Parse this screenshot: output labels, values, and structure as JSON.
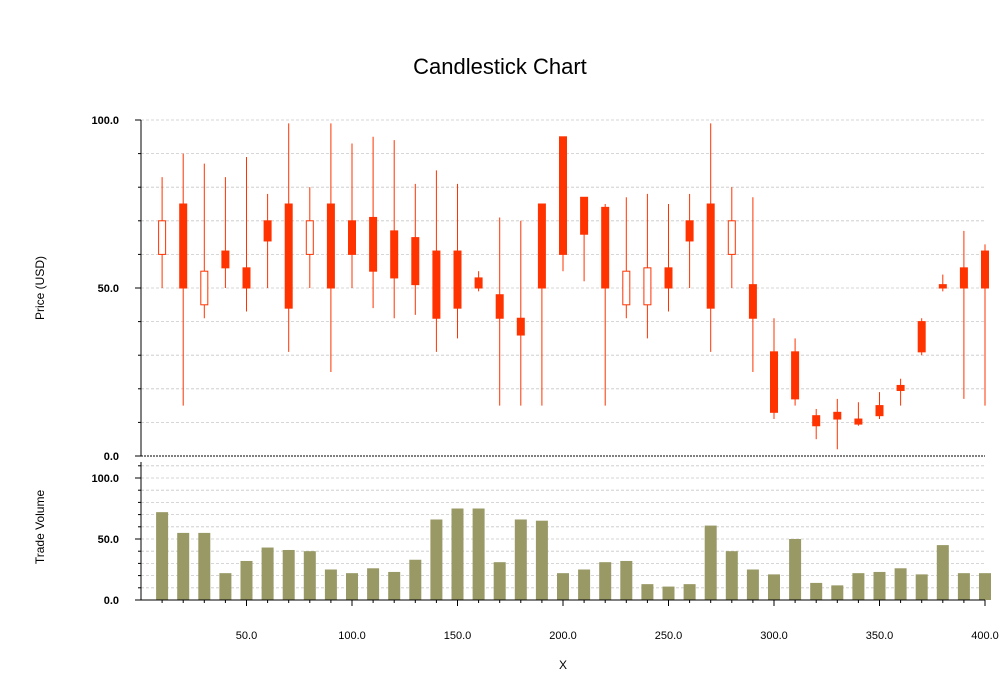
{
  "chart_data": {
    "type": "candlestick",
    "title": "Candlestick Chart",
    "xlabel": "X",
    "price_label": "Price (USD)",
    "volume_label": "Trade Volume",
    "xlim": [
      0,
      400
    ],
    "price_ylim": [
      0,
      100
    ],
    "volume_ylim": [
      0,
      100
    ],
    "x_ticks": [
      "50.0",
      "100.0",
      "150.0",
      "200.0",
      "250.0",
      "300.0",
      "350.0",
      "400.0"
    ],
    "price_ticks": [
      "0.0",
      "50.0",
      "100.0"
    ],
    "volume_ticks": [
      "0.0",
      "50.0",
      "100.0"
    ],
    "grid": true,
    "colors": {
      "candle": "#ff3300",
      "volume": "#999966",
      "grid": "#c8c8c8"
    },
    "candles": [
      {
        "x": 10,
        "open": 60,
        "high": 83,
        "low": 50,
        "close": 70
      },
      {
        "x": 20,
        "open": 75,
        "high": 90,
        "low": 15,
        "close": 50
      },
      {
        "x": 30,
        "open": 45,
        "high": 87,
        "low": 41,
        "close": 55
      },
      {
        "x": 40,
        "open": 61,
        "high": 83,
        "low": 50,
        "close": 56
      },
      {
        "x": 50,
        "open": 56,
        "high": 89,
        "low": 43,
        "close": 50
      },
      {
        "x": 60,
        "open": 70,
        "high": 78,
        "low": 50,
        "close": 64
      },
      {
        "x": 70,
        "open": 75,
        "high": 99,
        "low": 31,
        "close": 44
      },
      {
        "x": 80,
        "open": 60,
        "high": 80,
        "low": 50,
        "close": 70
      },
      {
        "x": 90,
        "open": 75,
        "high": 99,
        "low": 25,
        "close": 50
      },
      {
        "x": 100,
        "open": 70,
        "high": 93,
        "low": 50,
        "close": 60
      },
      {
        "x": 110,
        "open": 71,
        "high": 95,
        "low": 44,
        "close": 55
      },
      {
        "x": 120,
        "open": 67,
        "high": 94,
        "low": 41,
        "close": 53
      },
      {
        "x": 130,
        "open": 65,
        "high": 81,
        "low": 42,
        "close": 51
      },
      {
        "x": 140,
        "open": 61,
        "high": 85,
        "low": 31,
        "close": 41
      },
      {
        "x": 150,
        "open": 61,
        "high": 81,
        "low": 35,
        "close": 44
      },
      {
        "x": 160,
        "open": 53,
        "high": 55,
        "low": 49,
        "close": 50
      },
      {
        "x": 170,
        "open": 48,
        "high": 71,
        "low": 15,
        "close": 41
      },
      {
        "x": 180,
        "open": 41,
        "high": 70,
        "low": 15,
        "close": 36
      },
      {
        "x": 190,
        "open": 75,
        "high": 75,
        "low": 15,
        "close": 50
      },
      {
        "x": 200,
        "open": 95,
        "high": 95,
        "low": 55,
        "close": 60
      },
      {
        "x": 210,
        "open": 77,
        "high": 77,
        "low": 52,
        "close": 66
      },
      {
        "x": 220,
        "open": 74,
        "high": 75,
        "low": 15,
        "close": 50
      },
      {
        "x": 230,
        "open": 45,
        "high": 77,
        "low": 41,
        "close": 55
      },
      {
        "x": 240,
        "open": 45,
        "high": 78,
        "low": 35,
        "close": 56
      },
      {
        "x": 250,
        "open": 56,
        "high": 75,
        "low": 43,
        "close": 50
      },
      {
        "x": 260,
        "open": 70,
        "high": 78,
        "low": 50,
        "close": 64
      },
      {
        "x": 270,
        "open": 75,
        "high": 99,
        "low": 31,
        "close": 44
      },
      {
        "x": 280,
        "open": 60,
        "high": 80,
        "low": 50,
        "close": 70
      },
      {
        "x": 290,
        "open": 51,
        "high": 77,
        "low": 25,
        "close": 41
      },
      {
        "x": 300,
        "open": 31,
        "high": 41,
        "low": 11,
        "close": 13
      },
      {
        "x": 310,
        "open": 31,
        "high": 35,
        "low": 15,
        "close": 17
      },
      {
        "x": 320,
        "open": 12,
        "high": 14,
        "low": 5,
        "close": 9
      },
      {
        "x": 330,
        "open": 13,
        "high": 17,
        "low": 2,
        "close": 11
      },
      {
        "x": 340,
        "open": 11,
        "high": 16,
        "low": 9,
        "close": 9.5
      },
      {
        "x": 350,
        "open": 15,
        "high": 19,
        "low": 11,
        "close": 12
      },
      {
        "x": 360,
        "open": 21,
        "high": 23,
        "low": 15,
        "close": 19.5
      },
      {
        "x": 370,
        "open": 40,
        "high": 41,
        "low": 30,
        "close": 31
      },
      {
        "x": 380,
        "open": 51,
        "high": 54,
        "low": 49,
        "close": 50
      },
      {
        "x": 390,
        "open": 56,
        "high": 67,
        "low": 17,
        "close": 50
      },
      {
        "x": 400,
        "open": 61,
        "high": 63,
        "low": 15,
        "close": 50
      }
    ],
    "volumes": [
      72,
      55,
      55,
      22,
      32,
      43,
      41,
      40,
      25,
      22,
      26,
      23,
      33,
      66,
      75,
      75,
      31,
      66,
      65,
      22,
      25,
      31,
      32,
      13,
      11,
      13,
      61,
      40,
      25,
      21,
      50,
      14,
      12,
      22,
      23,
      26,
      21,
      45,
      22,
      22
    ]
  }
}
